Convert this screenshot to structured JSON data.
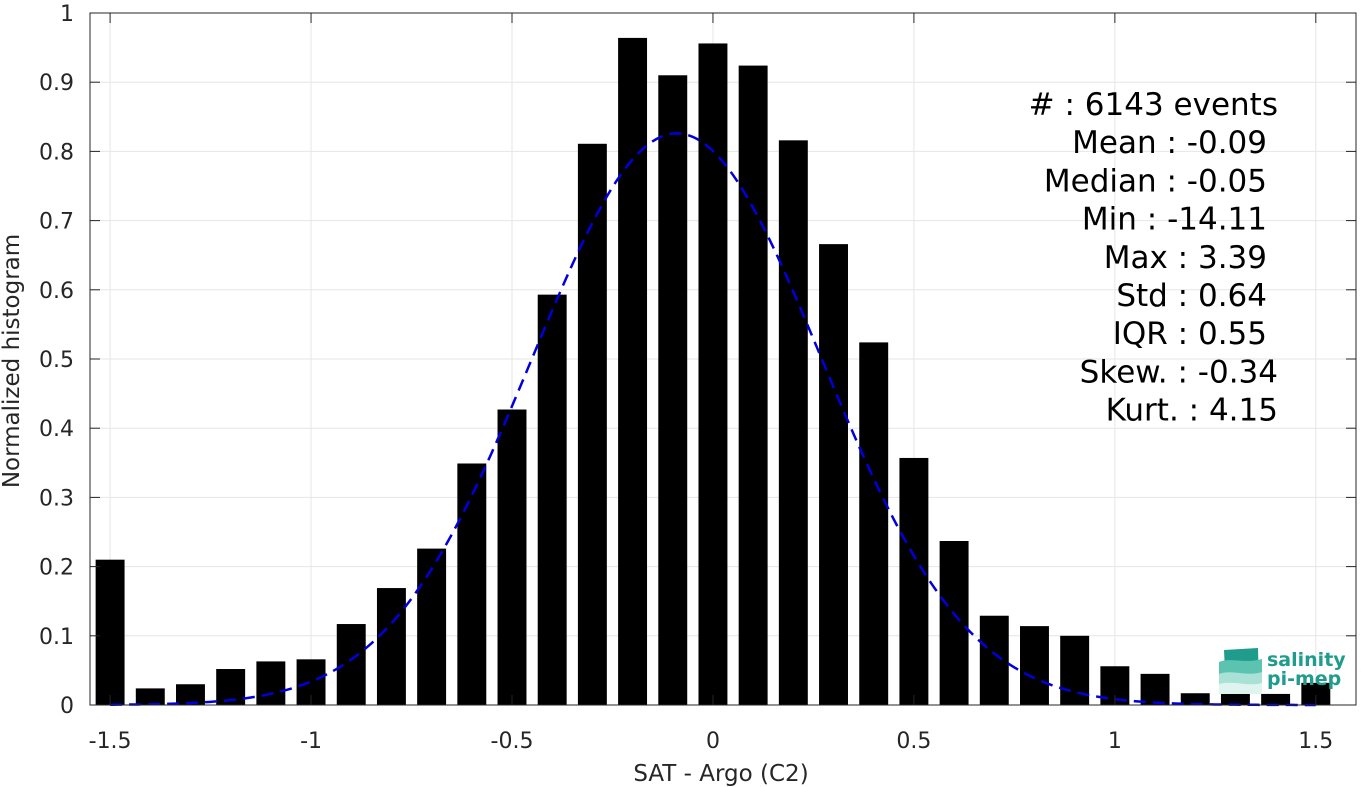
{
  "chart_data": {
    "type": "bar",
    "xlabel": "SAT - Argo (C2)",
    "ylabel": "Normalized histogram",
    "xlim": [
      -1.55,
      1.6
    ],
    "ylim": [
      0,
      1
    ],
    "grid": true,
    "xticks": [
      -1.5,
      -1,
      -0.5,
      0,
      0.5,
      1,
      1.5
    ],
    "xtick_labels": [
      "-1.5",
      "-1",
      "-0.5",
      "0",
      "0.5",
      "1",
      "1.5"
    ],
    "yticks": [
      0,
      0.1,
      0.2,
      0.3,
      0.4,
      0.5,
      0.6,
      0.7,
      0.8,
      0.9,
      1
    ],
    "ytick_labels": [
      "0",
      "0.1",
      "0.2",
      "0.3",
      "0.4",
      "0.5",
      "0.6",
      "0.7",
      "0.8",
      "0.9",
      "1"
    ],
    "bar_color": "#000000",
    "bins": [
      -1.5,
      -1.4,
      -1.3,
      -1.2,
      -1.1,
      -1.0,
      -0.9,
      -0.8,
      -0.7,
      -0.6,
      -0.5,
      -0.4,
      -0.3,
      -0.2,
      -0.1,
      0.0,
      0.1,
      0.2,
      0.3,
      0.4,
      0.5,
      0.6,
      0.7,
      0.8,
      0.9,
      1.0,
      1.1,
      1.2,
      1.3,
      1.4,
      1.5
    ],
    "values": [
      0.21,
      0.024,
      0.03,
      0.052,
      0.063,
      0.066,
      0.117,
      0.169,
      0.226,
      0.349,
      0.427,
      0.593,
      0.811,
      0.964,
      0.91,
      0.956,
      0.924,
      0.816,
      0.666,
      0.524,
      0.357,
      0.237,
      0.129,
      0.114,
      0.1,
      0.056,
      0.045,
      0.017,
      0.017,
      0.016,
      0.032
    ],
    "fit": {
      "style": "dashed",
      "color": "#0000dd",
      "mean": -0.09,
      "std": 0.36,
      "peak": 0.826,
      "xrange": [
        -1.5,
        1.5
      ]
    },
    "stats": [
      {
        "label": "#",
        "sep": " : ",
        "value": "6143 events"
      },
      {
        "label": "Mean",
        "sep": " : ",
        "value": "-0.09"
      },
      {
        "label": "Median",
        "sep": " : ",
        "value": "-0.05"
      },
      {
        "label": "Min",
        "sep": " : ",
        "value": "-14.11"
      },
      {
        "label": "Max",
        "sep": " : ",
        "value": "3.39"
      },
      {
        "label": "Std",
        "sep": " : ",
        "value": "0.64"
      },
      {
        "label": "IQR",
        "sep": " : ",
        "value": "0.55"
      },
      {
        "label": "Skew.",
        "sep": " : ",
        "value": "-0.34"
      },
      {
        "label": "Kurt.",
        "sep": " : ",
        "value": "4.15"
      }
    ]
  },
  "logo": {
    "line1": "salinity",
    "line2": "pi-mep",
    "color": "#1f9c8c"
  }
}
